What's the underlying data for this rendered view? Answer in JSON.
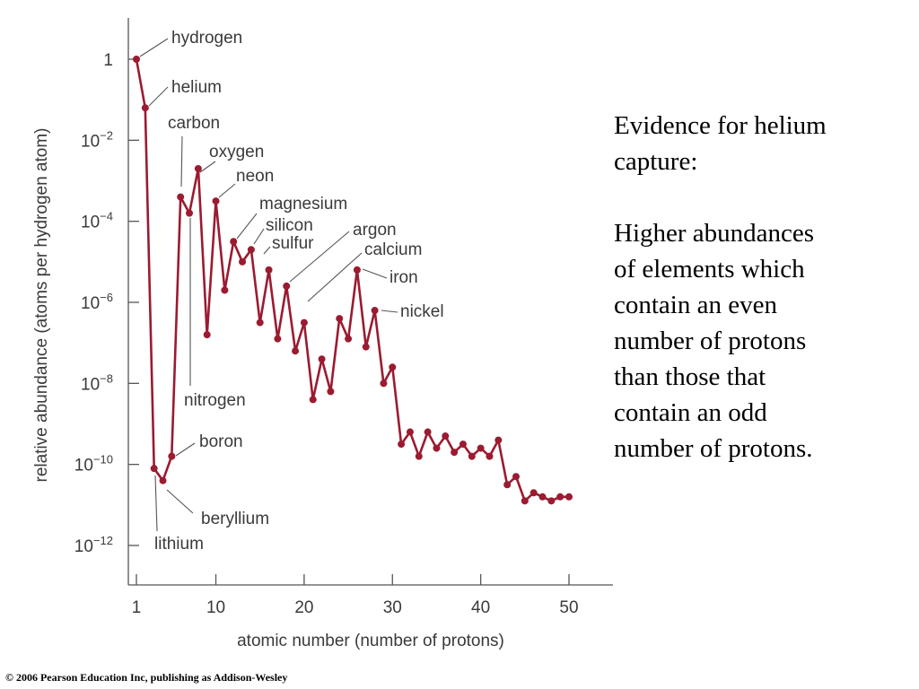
{
  "chart_data": {
    "type": "line",
    "xlabel": "atomic number (number of protons)",
    "ylabel": "relative abundance (atoms per hydrogen atom)",
    "y_scale": "log",
    "xlim": [
      1,
      55
    ],
    "ylim_log10": [
      -13,
      1.2
    ],
    "x_ticks": [
      1,
      10,
      20,
      30,
      40,
      50
    ],
    "y_ticks": [
      {
        "exp": 0,
        "label": "1"
      },
      {
        "exp": -2,
        "label": "10",
        "sup": "−2"
      },
      {
        "exp": -4,
        "label": "10",
        "sup": "−4"
      },
      {
        "exp": -6,
        "label": "10",
        "sup": "−6"
      },
      {
        "exp": -8,
        "label": "10",
        "sup": "−8"
      },
      {
        "exp": -10,
        "label": "10",
        "sup": "−10"
      },
      {
        "exp": -12,
        "label": "10",
        "sup": "−12"
      }
    ],
    "line_color": "#9b1b30",
    "series": [
      {
        "x": [
          1,
          2,
          3,
          4,
          5,
          6,
          7,
          8,
          9,
          10,
          11,
          12,
          13,
          14,
          15,
          16,
          17,
          18,
          19,
          20,
          21,
          22,
          23,
          24,
          25,
          26,
          27,
          28,
          29,
          30,
          31,
          32,
          33,
          34,
          35,
          36,
          37,
          38,
          39,
          40,
          41,
          42,
          43,
          44,
          45,
          46,
          47,
          48,
          49,
          50
        ],
        "log10_y": [
          0,
          -1.2,
          -10.1,
          -10.4,
          -9.8,
          -3.4,
          -3.8,
          -2.7,
          -6.8,
          -3.5,
          -5.7,
          -4.5,
          -5.0,
          -4.7,
          -6.5,
          -5.2,
          -6.9,
          -5.6,
          -7.2,
          -6.5,
          -8.4,
          -7.4,
          -8.2,
          -6.4,
          -6.9,
          -5.2,
          -7.1,
          -6.2,
          -8.0,
          -7.6,
          -9.5,
          -9.2,
          -9.8,
          -9.2,
          -9.6,
          -9.3,
          -9.7,
          -9.5,
          -9.8,
          -9.6,
          -9.8,
          -9.4,
          -10.5,
          -10.3,
          -10.9,
          -10.7,
          -10.8,
          -10.9,
          -10.8,
          -10.8
        ]
      }
    ],
    "annotations": [
      {
        "text": "hydrogen",
        "x": 1
      },
      {
        "text": "helium",
        "x": 2
      },
      {
        "text": "lithium",
        "x": 3
      },
      {
        "text": "beryllium",
        "x": 4
      },
      {
        "text": "boron",
        "x": 5
      },
      {
        "text": "carbon",
        "x": 6
      },
      {
        "text": "nitrogen",
        "x": 7
      },
      {
        "text": "oxygen",
        "x": 8
      },
      {
        "text": "neon",
        "x": 10
      },
      {
        "text": "magnesium",
        "x": 12
      },
      {
        "text": "silicon",
        "x": 14
      },
      {
        "text": "sulfur",
        "x": 16
      },
      {
        "text": "argon",
        "x": 18
      },
      {
        "text": "calcium",
        "x": 20
      },
      {
        "text": "iron",
        "x": 26
      },
      {
        "text": "nickel",
        "x": 28
      }
    ]
  },
  "side_text": {
    "line1": "Evidence for helium",
    "line2": "capture:",
    "line3": "Higher abundances",
    "line4": "of elements which",
    "line5": "contain an even",
    "line6": "number of protons",
    "line7": "than those that",
    "line8": "contain an odd",
    "line9": "number of protons."
  },
  "copyright": "© 2006 Pearson Education Inc, publishing as Addison-Wesley"
}
